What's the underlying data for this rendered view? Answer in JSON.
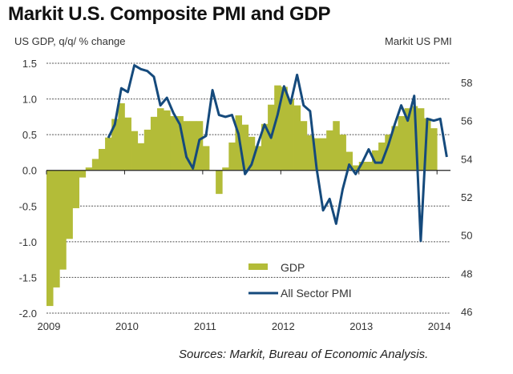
{
  "chart_data": {
    "type": "bar+line",
    "title": "Markit U.S. Composite PMI and GDP",
    "left_axis_label": "US GDP, q/q/ % change",
    "right_axis_label": "Markit  US PMI",
    "source": "Sources: Markit, Bureau of Economic Analysis.",
    "x_start": "2009-01",
    "x_unit": "month",
    "xticks": [
      "2009",
      "2010",
      "2011",
      "2012",
      "2013",
      "2014"
    ],
    "left_ylim": [
      -2.0,
      1.5
    ],
    "left_yticks": [
      "1.5",
      "1.0",
      "0.5",
      "0.0",
      "-0.5",
      "-1.0",
      "-1.5",
      "-2.0"
    ],
    "right_ylim": [
      46,
      59
    ],
    "right_yticks": [
      "58",
      "56",
      "54",
      "52",
      "50",
      "48",
      "46"
    ],
    "grid": "horizontal-dotted",
    "legend_position": "bottom-center",
    "legend": [
      {
        "label": "GDP",
        "kind": "bar",
        "color": "#b3bc38"
      },
      {
        "label": "All Sector PMI",
        "kind": "line",
        "color": "#154a7c"
      }
    ],
    "series": [
      {
        "name": "GDP",
        "axis": "left",
        "type": "bar",
        "color": "#b3bc38",
        "start_month_index": 0,
        "values": [
          -1.9,
          -1.64,
          -1.39,
          -0.96,
          -0.53,
          -0.1,
          0.04,
          0.16,
          0.3,
          0.46,
          0.72,
          0.94,
          0.74,
          0.55,
          0.38,
          0.57,
          0.75,
          0.87,
          0.84,
          0.76,
          0.76,
          0.69,
          0.69,
          0.69,
          0.34,
          0.0,
          -0.33,
          0.04,
          0.39,
          0.77,
          0.64,
          0.47,
          0.34,
          0.65,
          0.92,
          1.19,
          1.17,
          1.0,
          0.91,
          0.69,
          0.49,
          0.45,
          0.45,
          0.56,
          0.69,
          0.5,
          0.26,
          0.07,
          0.12,
          0.12,
          0.28,
          0.39,
          0.5,
          0.62,
          0.76,
          0.87,
          0.9,
          0.87,
          0.73,
          0.59
        ]
      },
      {
        "name": "All Sector PMI",
        "axis": "right",
        "type": "line",
        "color": "#154a7c",
        "start_month_index": 9,
        "values": [
          55.1,
          55.8,
          57.7,
          57.5,
          58.9,
          58.7,
          58.6,
          58.3,
          56.8,
          57.2,
          56.4,
          55.8,
          54.1,
          53.5,
          55.0,
          55.2,
          57.6,
          56.3,
          56.2,
          56.3,
          55.3,
          53.2,
          53.7,
          54.8,
          55.8,
          55.1,
          56.3,
          57.8,
          56.9,
          58.4,
          56.8,
          56.5,
          53.5,
          51.3,
          51.9,
          50.6,
          52.4,
          53.7,
          53.2,
          53.8,
          54.5,
          53.8,
          53.8,
          54.7,
          55.8,
          56.8,
          56.0,
          57.3,
          49.7,
          56.1,
          56.0,
          56.1,
          54.1
        ]
      }
    ]
  }
}
